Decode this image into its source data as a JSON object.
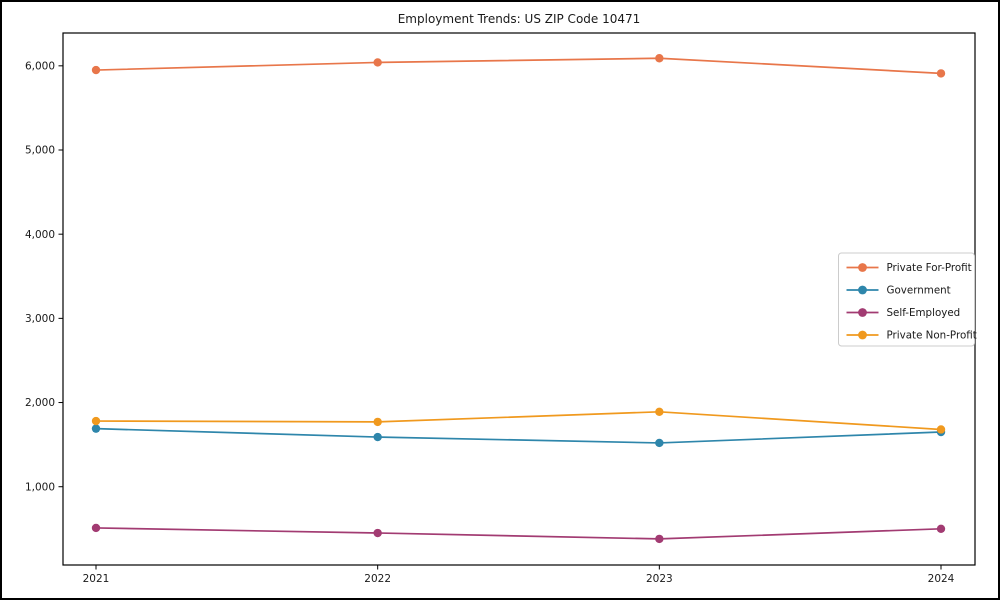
{
  "figure": {
    "title": "Employment Trends: US ZIP Code 10471"
  },
  "chart_data": {
    "type": "line",
    "title": "Employment Trends: US ZIP Code 10471",
    "xlabel": "",
    "ylabel": "",
    "grid": false,
    "legend_position": "center right",
    "x": [
      2021,
      2022,
      2023,
      2024
    ],
    "x_tick_labels": [
      "2021",
      "2022",
      "2023",
      "2024"
    ],
    "series": [
      {
        "name": "Private For-Profit",
        "color": "#e8764a",
        "values": [
          5950,
          6040,
          6090,
          5910
        ]
      },
      {
        "name": "Government",
        "color": "#2e86ab",
        "values": [
          1690,
          1590,
          1520,
          1650
        ]
      },
      {
        "name": "Self-Employed",
        "color": "#a23b72",
        "values": [
          510,
          450,
          380,
          500
        ]
      },
      {
        "name": "Private Non-Profit",
        "color": "#f0991e",
        "values": [
          1780,
          1770,
          1890,
          1680
        ]
      }
    ],
    "yticks": [
      {
        "value": 1000,
        "label": "1,000"
      },
      {
        "value": 2000,
        "label": "2,000"
      },
      {
        "value": 3000,
        "label": "3,000"
      },
      {
        "value": 4000,
        "label": "4,000"
      },
      {
        "value": 5000,
        "label": "5,000"
      },
      {
        "value": 6000,
        "label": "6,000"
      }
    ],
    "ylim": [
      70,
      6390
    ],
    "axis_color": "#000000",
    "legend_border_color": "#cccccc"
  }
}
